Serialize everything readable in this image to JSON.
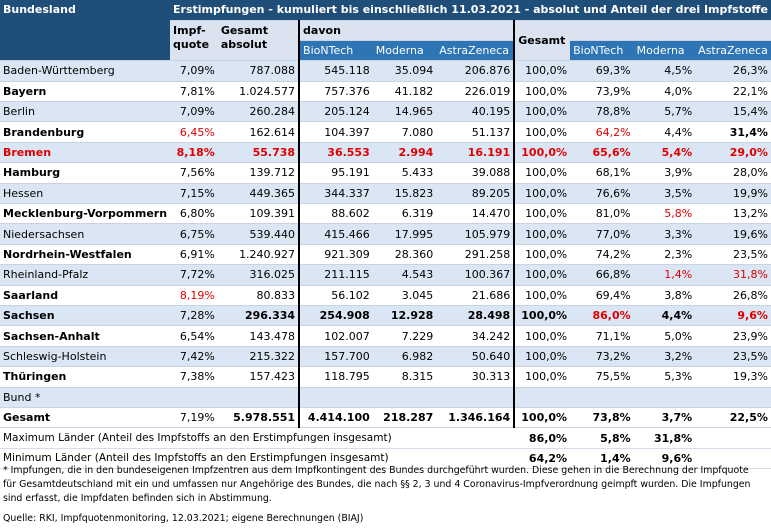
{
  "title": "Erstimpfungen - kumuliert bis einschließlich 11.03.2021 - absolut und Anteil der drei Impfstoffe",
  "headers": {
    "bundesland": "Bundesland",
    "impfquote": "Impf-\nquote",
    "impfquote_l1": "Impf-",
    "impfquote_l2": "quote",
    "gesamt_abs_l1": "Gesamt",
    "gesamt_abs_l2": "absolut",
    "davon": "davon",
    "biontech": "BioNTech",
    "moderna": "Moderna",
    "astrazeneca": "AstraZeneca",
    "gesamt_pct": "Gesamt",
    "biontech_pct": "BioNTech",
    "moderna_pct": "Moderna",
    "astrazeneca_pct": "AstraZeneca"
  },
  "rows": [
    {
      "land": "Baden-Württemberg",
      "quote": "7,09%",
      "gesamt": "787.088",
      "bio": "545.118",
      "mod": "35.094",
      "az": "206.876",
      "g_pct": "100,0%",
      "bio_pct": "69,3%",
      "mod_pct": "4,5%",
      "az_pct": "26,3%"
    },
    {
      "land": "Bayern",
      "quote": "7,81%",
      "gesamt": "1.024.577",
      "bio": "757.376",
      "mod": "41.182",
      "az": "226.019",
      "g_pct": "100,0%",
      "bio_pct": "73,9%",
      "mod_pct": "4,0%",
      "az_pct": "22,1%"
    },
    {
      "land": "Berlin",
      "quote": "7,09%",
      "gesamt": "260.284",
      "bio": "205.124",
      "mod": "14.965",
      "az": "40.195",
      "g_pct": "100,0%",
      "bio_pct": "78,8%",
      "mod_pct": "5,7%",
      "az_pct": "15,4%"
    },
    {
      "land": "Brandenburg",
      "quote": "6,45%",
      "gesamt": "162.614",
      "bio": "104.397",
      "mod": "7.080",
      "az": "51.137",
      "g_pct": "100,0%",
      "bio_pct": "64,2%",
      "mod_pct": "4,4%",
      "az_pct": "31,4%"
    },
    {
      "land": "Bremen",
      "quote": "8,18%",
      "gesamt": "55.738",
      "bio": "36.553",
      "mod": "2.994",
      "az": "16.191",
      "g_pct": "100,0%",
      "bio_pct": "65,6%",
      "mod_pct": "5,4%",
      "az_pct": "29,0%"
    },
    {
      "land": "Hamburg",
      "quote": "7,56%",
      "gesamt": "139.712",
      "bio": "95.191",
      "mod": "5.433",
      "az": "39.088",
      "g_pct": "100,0%",
      "bio_pct": "68,1%",
      "mod_pct": "3,9%",
      "az_pct": "28,0%"
    },
    {
      "land": "Hessen",
      "quote": "7,15%",
      "gesamt": "449.365",
      "bio": "344.337",
      "mod": "15.823",
      "az": "89.205",
      "g_pct": "100,0%",
      "bio_pct": "76,6%",
      "mod_pct": "3,5%",
      "az_pct": "19,9%"
    },
    {
      "land": "Mecklenburg-Vorpommern",
      "quote": "6,80%",
      "gesamt": "109.391",
      "bio": "88.602",
      "mod": "6.319",
      "az": "14.470",
      "g_pct": "100,0%",
      "bio_pct": "81,0%",
      "mod_pct": "5,8%",
      "az_pct": "13,2%"
    },
    {
      "land": "Niedersachsen",
      "quote": "6,75%",
      "gesamt": "539.440",
      "bio": "415.466",
      "mod": "17.995",
      "az": "105.979",
      "g_pct": "100,0%",
      "bio_pct": "77,0%",
      "mod_pct": "3,3%",
      "az_pct": "19,6%"
    },
    {
      "land": "Nordrhein-Westfalen",
      "quote": "6,91%",
      "gesamt": "1.240.927",
      "bio": "921.309",
      "mod": "28.360",
      "az": "291.258",
      "g_pct": "100,0%",
      "bio_pct": "74,2%",
      "mod_pct": "2,3%",
      "az_pct": "23,5%"
    },
    {
      "land": "Rheinland-Pfalz",
      "quote": "7,72%",
      "gesamt": "316.025",
      "bio": "211.115",
      "mod": "4.543",
      "az": "100.367",
      "g_pct": "100,0%",
      "bio_pct": "66,8%",
      "mod_pct": "1,4%",
      "az_pct": "31,8%"
    },
    {
      "land": "Saarland",
      "quote": "8,19%",
      "gesamt": "80.833",
      "bio": "56.102",
      "mod": "3.045",
      "az": "21.686",
      "g_pct": "100,0%",
      "bio_pct": "69,4%",
      "mod_pct": "3,8%",
      "az_pct": "26,8%"
    },
    {
      "land": "Sachsen",
      "quote": "7,28%",
      "gesamt": "296.334",
      "bio": "254.908",
      "mod": "12.928",
      "az": "28.498",
      "g_pct": "100,0%",
      "bio_pct": "86,0%",
      "mod_pct": "4,4%",
      "az_pct": "9,6%"
    },
    {
      "land": "Sachsen-Anhalt",
      "quote": "6,54%",
      "gesamt": "143.478",
      "bio": "102.007",
      "mod": "7.229",
      "az": "34.242",
      "g_pct": "100,0%",
      "bio_pct": "71,1%",
      "mod_pct": "5,0%",
      "az_pct": "23,9%"
    },
    {
      "land": "Schleswig-Holstein",
      "quote": "7,42%",
      "gesamt": "215.322",
      "bio": "157.700",
      "mod": "6.982",
      "az": "50.640",
      "g_pct": "100,0%",
      "bio_pct": "73,2%",
      "mod_pct": "3,2%",
      "az_pct": "23,5%"
    },
    {
      "land": "Thüringen",
      "quote": "7,38%",
      "gesamt": "157.423",
      "bio": "118.795",
      "mod": "8.315",
      "az": "30.313",
      "g_pct": "100,0%",
      "bio_pct": "75,5%",
      "mod_pct": "5,3%",
      "az_pct": "19,3%"
    },
    {
      "land": "Bund *",
      "quote": "",
      "gesamt": "",
      "bio": "",
      "mod": "",
      "az": "",
      "g_pct": "",
      "bio_pct": "",
      "mod_pct": "",
      "az_pct": ""
    },
    {
      "land": "Gesamt",
      "quote": "7,19%",
      "gesamt": "5.978.551",
      "bio": "4.414.100",
      "mod": "218.287",
      "az": "1.346.164",
      "g_pct": "100,0%",
      "bio_pct": "73,8%",
      "mod_pct": "3,7%",
      "az_pct": "22,5%"
    }
  ],
  "max_row": {
    "label": "Maximum Länder (Anteil des Impfstoffs an den Erstimpfungen insgesamt)",
    "bio": "86,0%",
    "mod": "5,8%",
    "az": "31,8%"
  },
  "min_row": {
    "label": "Minimum Länder (Anteil des Impfstoffs an den Erstimpfungen insgesamt)",
    "bio": "64,2%",
    "mod": "1,4%",
    "az": "9,6%"
  },
  "footnote": "* Impfungen, die in den bundeseigenen Impfzentren aus dem Impfkontingent des Bundes durchgeführt wurden. Diese gehen in die Berechnung der Impfquote für Gesamtdeutschland mit ein und umfassen nur Angehörige des Bundes, die nach §§ 2, 3 und 4 Coronavirus-Impfverordnung geimpft wurden. Die Impfungen sind erfasst, die Impfdaten befinden sich in Abstimmung.",
  "source": "Quelle: RKI, Impfquotenmonitoring, 12.03.2021; eigene Berechnungen (BIAJ)",
  "colors": {
    "header_dark": "#1f4e79",
    "header_sub": "#2e75b6",
    "row_blue": "#dbe6f4",
    "highlight_red": "#e00000"
  }
}
